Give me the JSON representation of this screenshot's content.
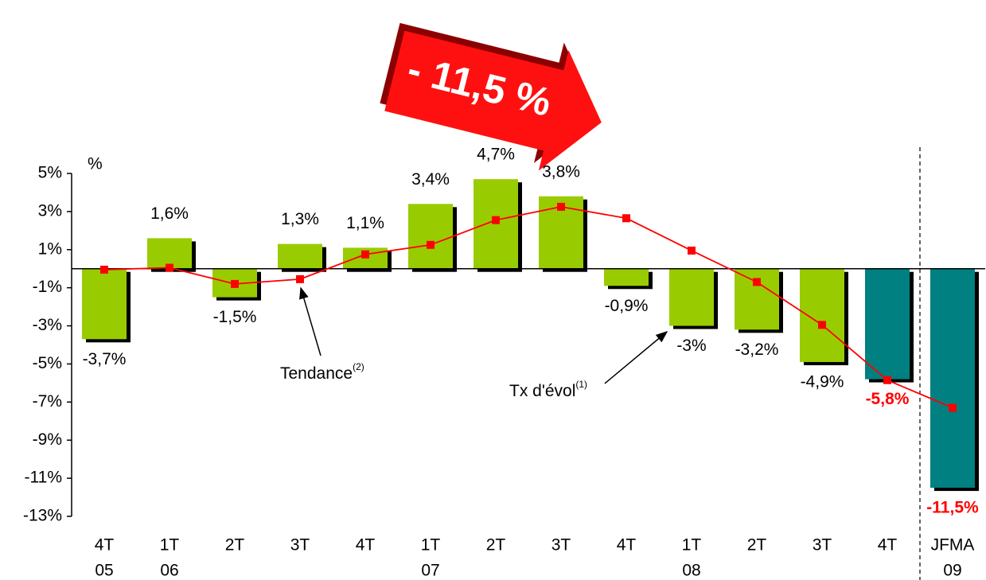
{
  "chart_data": {
    "type": "bar",
    "title": "- 11,5 %",
    "y_unit": "%",
    "categories": [
      [
        "4T",
        "05"
      ],
      [
        "1T",
        "06"
      ],
      [
        "2T"
      ],
      [
        "3T"
      ],
      [
        "4T"
      ],
      [
        "1T",
        "07"
      ],
      [
        "2T"
      ],
      [
        "3T"
      ],
      [
        "4T"
      ],
      [
        "1T",
        "08"
      ],
      [
        "2T"
      ],
      [
        "3T"
      ],
      [
        "4T"
      ],
      [
        "JFMA",
        "09"
      ]
    ],
    "series": [
      {
        "name": "Tx d'évol",
        "name_sup": "(1)",
        "type": "bar",
        "colors": [
          "#99cc00",
          "#99cc00",
          "#99cc00",
          "#99cc00",
          "#99cc00",
          "#99cc00",
          "#99cc00",
          "#99cc00",
          "#99cc00",
          "#99cc00",
          "#99cc00",
          "#99cc00",
          "#008080",
          "#008080"
        ],
        "label_colors": [
          "#000",
          "#000",
          "#000",
          "#000",
          "#000",
          "#000",
          "#000",
          "#000",
          "#000",
          "#000",
          "#000",
          "#000",
          "#ff0000",
          "#ff0000"
        ],
        "values": [
          -3.7,
          1.6,
          -1.5,
          1.3,
          1.1,
          3.4,
          4.7,
          3.8,
          -0.9,
          -3,
          -3.2,
          -4.9,
          -5.8,
          -11.5
        ],
        "value_labels": [
          "-3,7%",
          "1,6%",
          "-1,5%",
          "1,3%",
          "1,1%",
          "3,4%",
          "4,7%",
          "3,8%",
          "-0,9%",
          "-3%",
          "-3,2%",
          "-4,9%",
          "-5,8%",
          "-11,5%"
        ]
      },
      {
        "name": "Tendance",
        "name_sup": "(2)",
        "type": "line",
        "color": "#ff0000",
        "values": [
          -0.05,
          0.05,
          -0.8,
          -0.55,
          0.75,
          1.25,
          2.55,
          3.25,
          2.65,
          0.95,
          -0.7,
          -2.95,
          -5.85,
          -7.3
        ]
      }
    ],
    "ylim": [
      -13,
      5
    ],
    "yticks": [
      {
        "value": 5,
        "label": "5%"
      },
      {
        "value": 3,
        "label": "3%"
      },
      {
        "value": 1,
        "label": "1%"
      },
      {
        "value": -1,
        "label": "-1%"
      },
      {
        "value": -3,
        "label": "-3%"
      },
      {
        "value": -5,
        "label": "-5%"
      },
      {
        "value": -7,
        "label": "-7%"
      },
      {
        "value": -9,
        "label": "-9%"
      },
      {
        "value": -11,
        "label": "-11%"
      },
      {
        "value": -13,
        "label": "-13%"
      }
    ]
  }
}
